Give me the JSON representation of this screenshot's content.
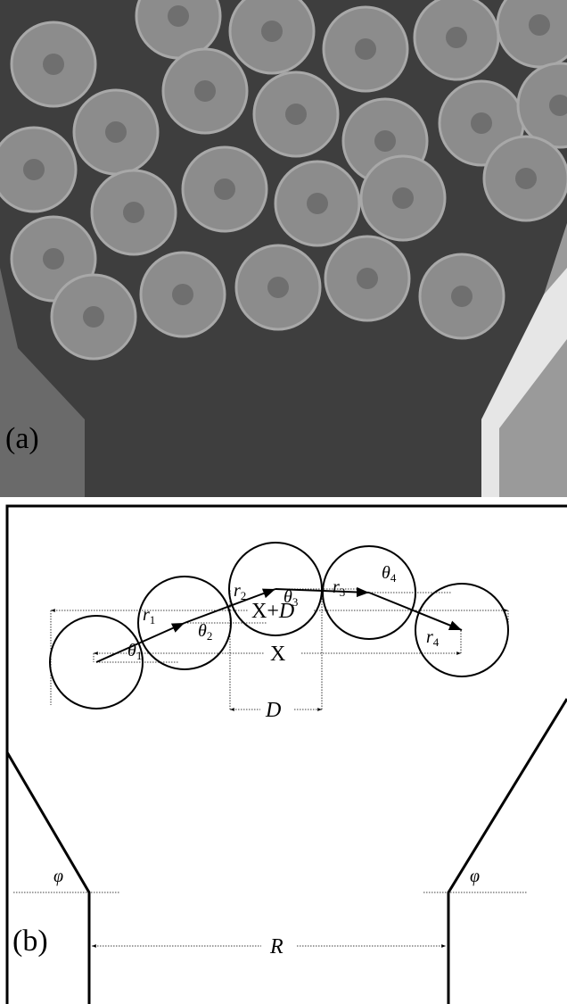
{
  "panel_a": {
    "label": "(a)"
  },
  "panel_b": {
    "label": "(b)",
    "dimensions": {
      "x_plus_d": {
        "plain": "X+",
        "italic": "D"
      },
      "x": "X",
      "d": "D",
      "r": "R"
    },
    "vectors": [
      {
        "symbol": "r",
        "index": "1"
      },
      {
        "symbol": "r",
        "index": "2"
      },
      {
        "symbol": "r",
        "index": "3"
      },
      {
        "symbol": "r",
        "index": "4"
      }
    ],
    "angles": [
      {
        "symbol": "θ",
        "index": "1"
      },
      {
        "symbol": "θ",
        "index": "2"
      },
      {
        "symbol": "θ",
        "index": "3"
      },
      {
        "symbol": "θ",
        "index": "4"
      }
    ],
    "wall_angles": [
      "φ",
      "φ"
    ]
  }
}
